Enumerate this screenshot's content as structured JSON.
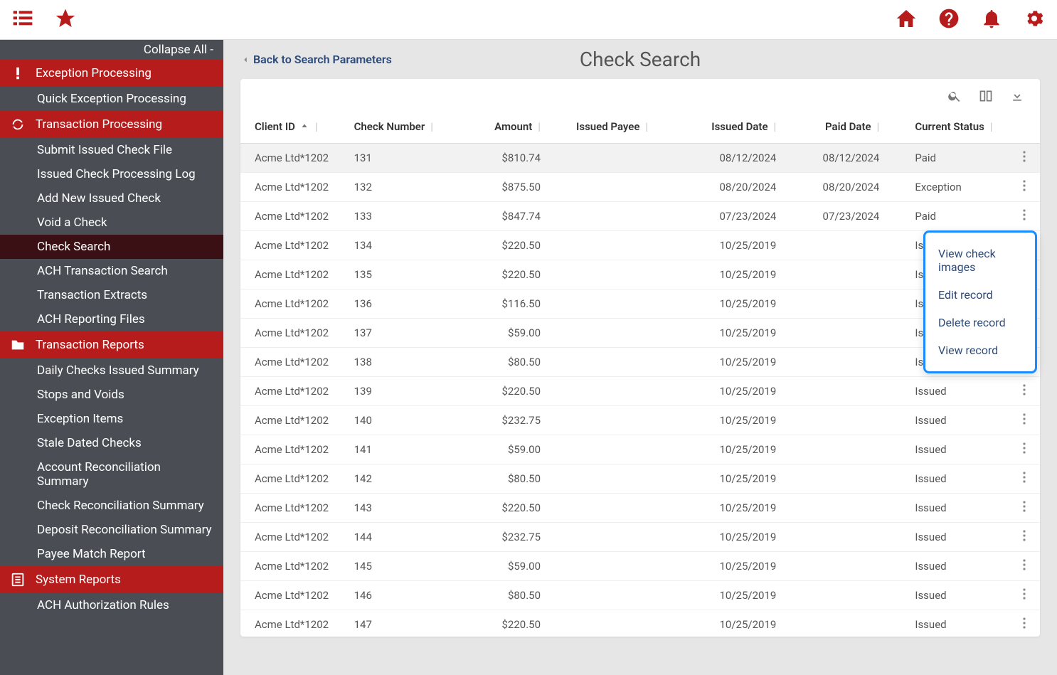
{
  "topbar": {
    "icons": [
      "list",
      "star",
      "home",
      "help",
      "bell",
      "gear"
    ]
  },
  "sidebar": {
    "collapse_label": "Collapse All -",
    "sections": [
      {
        "id": "exception-processing",
        "label": "Exception Processing",
        "icon": "alert",
        "items": [
          {
            "id": "quick-exception",
            "label": "Quick Exception Processing"
          }
        ]
      },
      {
        "id": "transaction-processing",
        "label": "Transaction Processing",
        "icon": "refresh",
        "items": [
          {
            "id": "submit-issued",
            "label": "Submit Issued Check File"
          },
          {
            "id": "issued-log",
            "label": "Issued Check Processing Log"
          },
          {
            "id": "add-new",
            "label": "Add New Issued Check"
          },
          {
            "id": "void-check",
            "label": "Void a Check"
          },
          {
            "id": "check-search",
            "label": "Check Search",
            "active": true
          },
          {
            "id": "ach-search",
            "label": "ACH Transaction Search"
          },
          {
            "id": "extracts",
            "label": "Transaction Extracts"
          },
          {
            "id": "ach-report-files",
            "label": "ACH Reporting Files"
          }
        ]
      },
      {
        "id": "transaction-reports",
        "label": "Transaction Reports",
        "icon": "folder",
        "items": [
          {
            "id": "daily-checks",
            "label": "Daily Checks Issued Summary"
          },
          {
            "id": "stops-voids",
            "label": "Stops and Voids"
          },
          {
            "id": "exception-items",
            "label": "Exception Items"
          },
          {
            "id": "stale-dated",
            "label": "Stale Dated Checks"
          },
          {
            "id": "account-recon",
            "label": "Account Reconciliation Summary"
          },
          {
            "id": "check-recon",
            "label": "Check Reconciliation Summary"
          },
          {
            "id": "deposit-recon",
            "label": "Deposit Reconciliation Summary"
          },
          {
            "id": "payee-match",
            "label": "Payee Match Report"
          }
        ]
      },
      {
        "id": "system-reports",
        "label": "System Reports",
        "icon": "doc",
        "items": [
          {
            "id": "ach-auth",
            "label": "ACH Authorization Rules"
          }
        ]
      }
    ]
  },
  "page": {
    "back_label": "Back to Search Parameters",
    "title": "Check Search"
  },
  "table": {
    "columns": [
      "Client ID",
      "Check Number",
      "Amount",
      "Issued Payee",
      "Issued Date",
      "Paid Date",
      "Current Status"
    ],
    "rows": [
      {
        "client": "Acme Ltd*1202",
        "check": "131",
        "amount": "$810.74",
        "payee": "",
        "issued": "08/12/2024",
        "paid": "08/12/2024",
        "status": "Paid",
        "highlight": true
      },
      {
        "client": "Acme Ltd*1202",
        "check": "132",
        "amount": "$875.50",
        "payee": "",
        "issued": "08/20/2024",
        "paid": "08/20/2024",
        "status": "Exception"
      },
      {
        "client": "Acme Ltd*1202",
        "check": "133",
        "amount": "$847.74",
        "payee": "",
        "issued": "07/23/2024",
        "paid": "07/23/2024",
        "status": "Paid"
      },
      {
        "client": "Acme Ltd*1202",
        "check": "134",
        "amount": "$220.50",
        "payee": "",
        "issued": "10/25/2019",
        "paid": "",
        "status": "Issued"
      },
      {
        "client": "Acme Ltd*1202",
        "check": "135",
        "amount": "$220.50",
        "payee": "",
        "issued": "10/25/2019",
        "paid": "",
        "status": "Issued"
      },
      {
        "client": "Acme Ltd*1202",
        "check": "136",
        "amount": "$116.50",
        "payee": "",
        "issued": "10/25/2019",
        "paid": "",
        "status": "Issued"
      },
      {
        "client": "Acme Ltd*1202",
        "check": "137",
        "amount": "$59.00",
        "payee": "",
        "issued": "10/25/2019",
        "paid": "",
        "status": "Issued"
      },
      {
        "client": "Acme Ltd*1202",
        "check": "138",
        "amount": "$80.50",
        "payee": "",
        "issued": "10/25/2019",
        "paid": "",
        "status": "Issued"
      },
      {
        "client": "Acme Ltd*1202",
        "check": "139",
        "amount": "$220.50",
        "payee": "",
        "issued": "10/25/2019",
        "paid": "",
        "status": "Issued"
      },
      {
        "client": "Acme Ltd*1202",
        "check": "140",
        "amount": "$232.75",
        "payee": "",
        "issued": "10/25/2019",
        "paid": "",
        "status": "Issued"
      },
      {
        "client": "Acme Ltd*1202",
        "check": "141",
        "amount": "$59.00",
        "payee": "",
        "issued": "10/25/2019",
        "paid": "",
        "status": "Issued"
      },
      {
        "client": "Acme Ltd*1202",
        "check": "142",
        "amount": "$80.50",
        "payee": "",
        "issued": "10/25/2019",
        "paid": "",
        "status": "Issued"
      },
      {
        "client": "Acme Ltd*1202",
        "check": "143",
        "amount": "$220.50",
        "payee": "",
        "issued": "10/25/2019",
        "paid": "",
        "status": "Issued"
      },
      {
        "client": "Acme Ltd*1202",
        "check": "144",
        "amount": "$232.75",
        "payee": "",
        "issued": "10/25/2019",
        "paid": "",
        "status": "Issued"
      },
      {
        "client": "Acme Ltd*1202",
        "check": "145",
        "amount": "$59.00",
        "payee": "",
        "issued": "10/25/2019",
        "paid": "",
        "status": "Issued"
      },
      {
        "client": "Acme Ltd*1202",
        "check": "146",
        "amount": "$80.50",
        "payee": "",
        "issued": "10/25/2019",
        "paid": "",
        "status": "Issued"
      },
      {
        "client": "Acme Ltd*1202",
        "check": "147",
        "amount": "$220.50",
        "payee": "",
        "issued": "10/25/2019",
        "paid": "",
        "status": "Issued"
      }
    ]
  },
  "context_menu": {
    "items": [
      {
        "id": "view-images",
        "label": "View check images"
      },
      {
        "id": "edit",
        "label": "Edit record"
      },
      {
        "id": "delete",
        "label": "Delete record"
      },
      {
        "id": "view",
        "label": "View record"
      }
    ]
  },
  "colors": {
    "brand_red": "#b71c1c",
    "sidebar_bg": "#4a4e54",
    "active_bg": "#3a1014",
    "link_blue": "#2c4a7a",
    "menu_border": "#1a8cff"
  }
}
